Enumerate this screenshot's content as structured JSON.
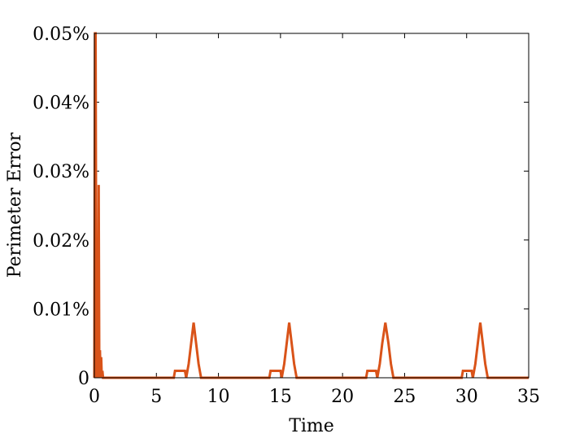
{
  "chart_data": {
    "type": "line",
    "title": "",
    "xlabel": "Time",
    "ylabel": "Perimeter Error",
    "xlim": [
      0,
      35
    ],
    "ylim": [
      0,
      0.05
    ],
    "x_ticks": [
      0,
      5,
      10,
      15,
      20,
      25,
      30,
      35
    ],
    "x_tick_labels": [
      "0",
      "5",
      "10",
      "15",
      "20",
      "25",
      "30",
      "35"
    ],
    "y_ticks": [
      0,
      0.01,
      0.02,
      0.03,
      0.04,
      0.05
    ],
    "y_tick_labels": [
      "0",
      "0.01%",
      "0.02%",
      "0.03%",
      "0.04%",
      "0.05%"
    ],
    "grid": false,
    "line_color": "#d95319",
    "series": [
      {
        "x": [
          0,
          0.05,
          0.1,
          0.15,
          0.2,
          0.25,
          0.3,
          0.35,
          0.4,
          0.45,
          0.5,
          0.55,
          0.6,
          0.65,
          0.7,
          0.75,
          1.0,
          6.4,
          6.5,
          7.3,
          7.4,
          7.6,
          7.8,
          8.0,
          8.2,
          8.4,
          8.6,
          8.7,
          14.1,
          14.2,
          15.0,
          15.1,
          15.3,
          15.5,
          15.7,
          15.9,
          16.1,
          16.3,
          16.4,
          21.9,
          22.0,
          22.7,
          22.8,
          23.0,
          23.2,
          23.45,
          23.7,
          23.9,
          24.1,
          24.2,
          29.6,
          29.7,
          30.4,
          30.5,
          30.7,
          30.9,
          31.1,
          31.3,
          31.5,
          31.7,
          31.8,
          35
        ],
        "y": [
          0,
          0.05,
          0.05,
          0.012,
          0,
          0.006,
          0,
          0.028,
          0,
          0.004,
          0,
          0.003,
          0,
          0.001,
          0,
          0,
          0,
          0,
          0.001,
          0.001,
          0,
          0.002,
          0.005,
          0.008,
          0.005,
          0.002,
          0,
          0,
          0,
          0.001,
          0.001,
          0,
          0.002,
          0.005,
          0.008,
          0.005,
          0.002,
          0,
          0,
          0,
          0.001,
          0.001,
          0,
          0.002,
          0.005,
          0.008,
          0.005,
          0.002,
          0,
          0,
          0,
          0.001,
          0.001,
          0,
          0.002,
          0.005,
          0.008,
          0.005,
          0.002,
          0,
          0,
          0
        ]
      }
    ]
  }
}
